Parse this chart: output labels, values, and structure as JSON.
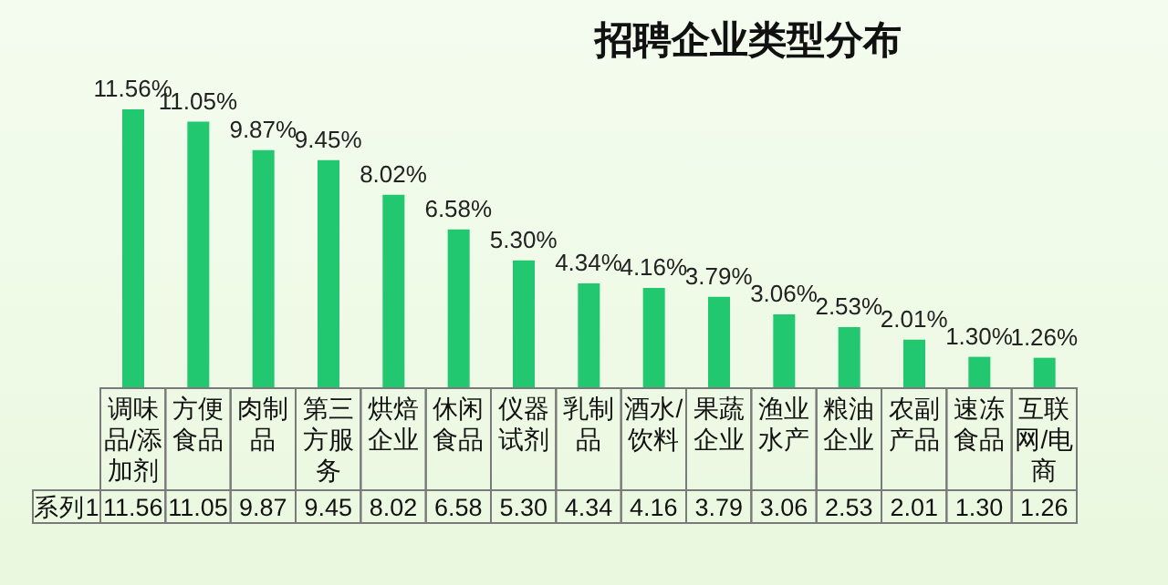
{
  "chart_data": {
    "type": "bar",
    "title": "招聘企业类型分布",
    "categories": [
      "调味品/添加剂",
      "方便食品",
      "肉制品",
      "第三方服务",
      "烘焙企业",
      "休闲食品",
      "仪器试剂",
      "乳制品",
      "酒水/饮料",
      "果蔬企业",
      "渔业水产",
      "粮油企业",
      "农副产品",
      "速冻食品",
      "互联网/电商"
    ],
    "series": [
      {
        "name": "系列1",
        "color": "#22c870",
        "values": [
          11.56,
          11.05,
          9.87,
          9.45,
          8.02,
          6.58,
          5.3,
          4.34,
          4.16,
          3.79,
          3.06,
          2.53,
          2.01,
          1.3,
          1.26
        ],
        "value_labels": [
          "11.56",
          "11.05",
          "9.87",
          "9.45",
          "8.02",
          "6.58",
          "5.30",
          "4.34",
          "4.16",
          "3.79",
          "3.06",
          "2.53",
          "2.01",
          "1.30",
          "1.26"
        ]
      }
    ],
    "annotations": [
      {
        "text": "11.56%",
        "x": "调味品/添加剂",
        "y": 11.56
      },
      {
        "text": "11.05%",
        "x": "方便食品",
        "y": 11.05
      },
      {
        "text": "9.87%",
        "x": "肉制品",
        "y": 9.87
      },
      {
        "text": "9.45%",
        "x": "第三方服务",
        "y": 9.45
      },
      {
        "text": "8.02%",
        "x": "烘焙企业",
        "y": 8.02
      },
      {
        "text": "6.58%",
        "x": "休闲食品",
        "y": 6.58
      },
      {
        "text": "5.30%",
        "x": "仪器试剂",
        "y": 5.3
      },
      {
        "text": "4.34%",
        "x": "乳制品",
        "y": 4.34
      },
      {
        "text": "4.16%",
        "x": "酒水/饮料",
        "y": 4.16
      },
      {
        "text": "3.79%",
        "x": "果蔬企业",
        "y": 3.79
      },
      {
        "text": "3.06%",
        "x": "渔业水产",
        "y": 3.06
      },
      {
        "text": "2.53%",
        "x": "粮油企业",
        "y": 2.53
      },
      {
        "text": "2.01%",
        "x": "农副产品",
        "y": 2.01
      },
      {
        "text": "1.30%",
        "x": "速冻食品",
        "y": 1.3
      },
      {
        "text": "1.26%",
        "x": "互联网/电商",
        "y": 1.26
      }
    ],
    "legend": false
  }
}
